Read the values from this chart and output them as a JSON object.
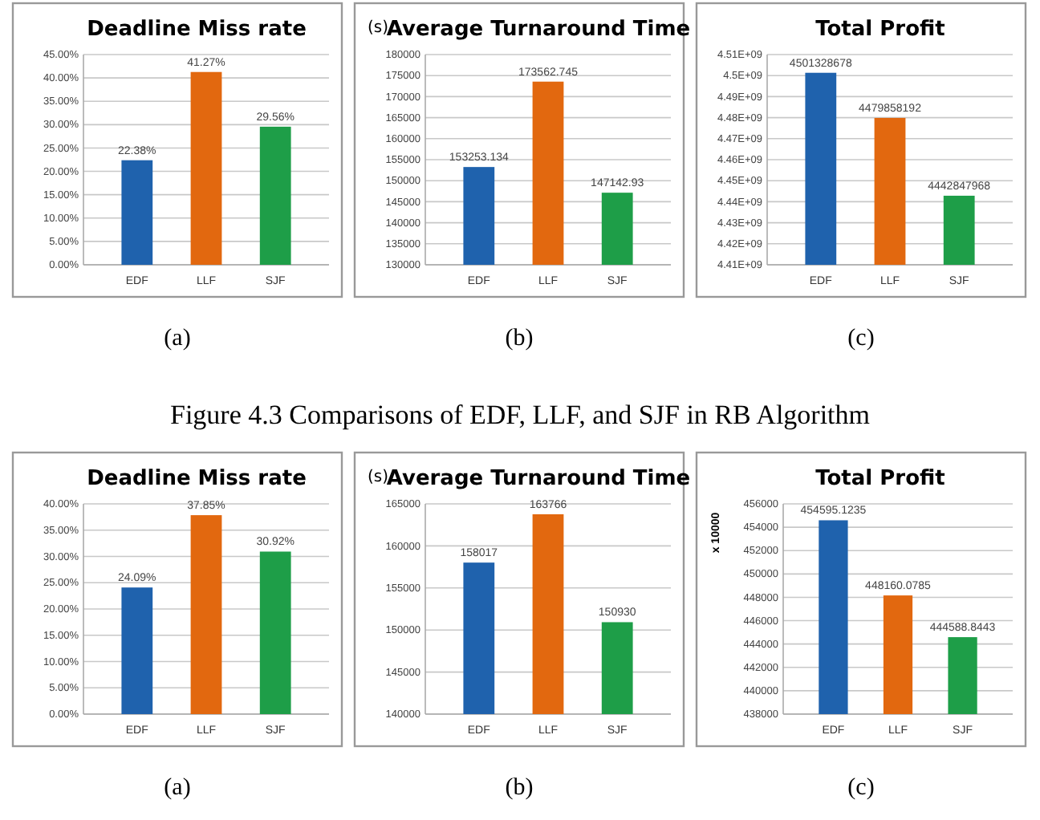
{
  "chart_data": [
    {
      "type": "bar",
      "title": "Deadline Miss rate",
      "categories": [
        "EDF",
        "LLF",
        "SJF"
      ],
      "values": [
        22.38,
        41.27,
        29.56
      ],
      "colors": [
        "#1f62ad",
        "#e2680f",
        "#1e9e48"
      ],
      "value_labels": [
        "22.38%",
        "41.27%",
        "29.56%"
      ],
      "ylim": [
        0,
        45
      ],
      "yticks": [
        {
          "value": 0,
          "label": "0.00%"
        },
        {
          "value": 5,
          "label": "5.00%"
        },
        {
          "value": 10,
          "label": "10.00%"
        },
        {
          "value": 15,
          "label": "15.00%"
        },
        {
          "value": 20,
          "label": "20.00%"
        },
        {
          "value": 25,
          "label": "25.00%"
        },
        {
          "value": 30,
          "label": "30.00%"
        },
        {
          "value": 35,
          "label": "35.00%"
        },
        {
          "value": 40,
          "label": "40.00%"
        },
        {
          "value": 45,
          "label": "45.00%"
        }
      ],
      "grid": "y",
      "annotations": [
        "(a)"
      ]
    },
    {
      "type": "bar",
      "title": "Average Turnaround Time",
      "ylabel": "(s)",
      "categories": [
        "EDF",
        "LLF",
        "SJF"
      ],
      "values": [
        153253.134,
        173562.745,
        147142.93
      ],
      "colors": [
        "#1f62ad",
        "#e2680f",
        "#1e9e48"
      ],
      "value_labels": [
        "153253.134",
        "173562.745",
        "147142.93"
      ],
      "ylim": [
        130000,
        180000
      ],
      "yticks": [
        130000,
        135000,
        140000,
        145000,
        150000,
        155000,
        160000,
        165000,
        170000,
        175000,
        180000
      ],
      "grid": "y",
      "annotations": [
        "(b)"
      ]
    },
    {
      "type": "bar",
      "title": "Total Profit",
      "categories": [
        "EDF",
        "LLF",
        "SJF"
      ],
      "values": [
        4501328678,
        4479858192,
        4442847968
      ],
      "colors": [
        "#1f62ad",
        "#e2680f",
        "#1e9e48"
      ],
      "value_labels": [
        "4501328678",
        "4479858192",
        "4442847968"
      ],
      "ylim": [
        4410000000,
        4510000000
      ],
      "yticks": [
        {
          "value": 4410000000,
          "label": "4.41E+09"
        },
        {
          "value": 4420000000,
          "label": "4.42E+09"
        },
        {
          "value": 4430000000,
          "label": "4.43E+09"
        },
        {
          "value": 4440000000,
          "label": "4.44E+09"
        },
        {
          "value": 4450000000,
          "label": "4.45E+09"
        },
        {
          "value": 4460000000,
          "label": "4.46E+09"
        },
        {
          "value": 4470000000,
          "label": "4.47E+09"
        },
        {
          "value": 4480000000,
          "label": "4.48E+09"
        },
        {
          "value": 4490000000,
          "label": "4.49E+09"
        },
        {
          "value": 4500000000,
          "label": "4.5E+09"
        },
        {
          "value": 4510000000,
          "label": "4.51E+09"
        }
      ],
      "grid": "y",
      "annotations": [
        "(c)"
      ]
    },
    {
      "type": "bar",
      "title": "Deadline Miss rate",
      "categories": [
        "EDF",
        "LLF",
        "SJF"
      ],
      "values": [
        24.09,
        37.85,
        30.92
      ],
      "colors": [
        "#1f62ad",
        "#e2680f",
        "#1e9e48"
      ],
      "value_labels": [
        "24.09%",
        "37.85%",
        "30.92%"
      ],
      "ylim": [
        0,
        40
      ],
      "yticks": [
        {
          "value": 0,
          "label": "0.00%"
        },
        {
          "value": 5,
          "label": "5.00%"
        },
        {
          "value": 10,
          "label": "10.00%"
        },
        {
          "value": 15,
          "label": "15.00%"
        },
        {
          "value": 20,
          "label": "20.00%"
        },
        {
          "value": 25,
          "label": "25.00%"
        },
        {
          "value": 30,
          "label": "30.00%"
        },
        {
          "value": 35,
          "label": "35.00%"
        },
        {
          "value": 40,
          "label": "40.00%"
        }
      ],
      "grid": "y",
      "annotations": [
        "Figure 4.3 Comparisons of EDF, LLF, and SJF in RB Algorithm",
        "(a)"
      ]
    },
    {
      "type": "bar",
      "title": "Average Turnaround Time",
      "ylabel": "(s)",
      "categories": [
        "EDF",
        "LLF",
        "SJF"
      ],
      "values": [
        158017,
        163766,
        150930
      ],
      "colors": [
        "#1f62ad",
        "#e2680f",
        "#1e9e48"
      ],
      "value_labels": [
        "158017",
        "163766",
        "150930"
      ],
      "ylim": [
        140000,
        165000
      ],
      "yticks": [
        140000,
        145000,
        150000,
        155000,
        160000,
        165000
      ],
      "grid": "y",
      "annotations": [
        "(b)"
      ]
    },
    {
      "type": "bar",
      "title": "Total Profit",
      "ylabel": "x 10000",
      "categories": [
        "EDF",
        "LLF",
        "SJF"
      ],
      "values": [
        454595.1235,
        448160.0785,
        444588.8443
      ],
      "colors": [
        "#1f62ad",
        "#e2680f",
        "#1e9e48"
      ],
      "value_labels": [
        "454595.1235",
        "448160.0785",
        "444588.8443"
      ],
      "ylim": [
        438000,
        456000
      ],
      "yticks": [
        438000,
        440000,
        442000,
        444000,
        446000,
        448000,
        450000,
        452000,
        454000,
        456000
      ],
      "grid": "y",
      "annotations": [
        "(c)"
      ]
    }
  ]
}
